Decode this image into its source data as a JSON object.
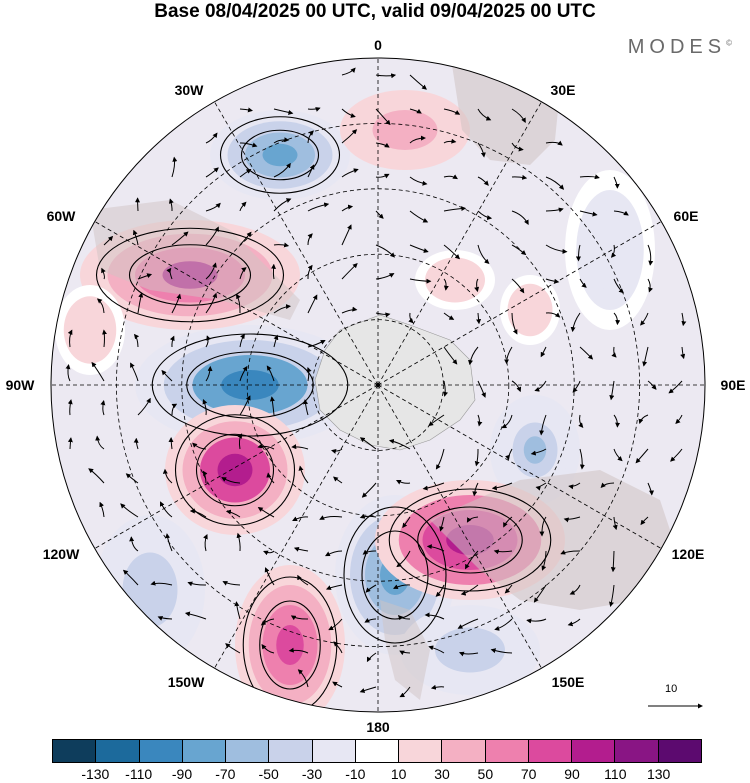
{
  "title": "Base 08/04/2025 00 UTC, valid 09/04/2025 00 UTC",
  "brand": "MODES",
  "brand_mark": "©",
  "longitude_labels": {
    "deg0": "0",
    "deg30e": "30E",
    "deg60e": "60E",
    "deg90e": "90E",
    "deg120e": "120E",
    "deg150e": "150E",
    "deg180": "180",
    "deg150w": "150W",
    "deg120w": "120W",
    "deg90w": "90W",
    "deg60w": "60W",
    "deg30w": "30W"
  },
  "reference_vector": "10",
  "legend": {
    "ticks": [
      "-130",
      "-110",
      "-90",
      "-70",
      "-50",
      "-30",
      "-10",
      "10",
      "30",
      "50",
      "70",
      "90",
      "110",
      "130"
    ],
    "colors": [
      "#0e3d5c",
      "#1c6a9c",
      "#3a87be",
      "#68a5d0",
      "#9fbedf",
      "#c9d2ea",
      "#e7e7f3",
      "#ffffff",
      "#f8d6da",
      "#f4b0c3",
      "#ee80ae",
      "#dc4a9e",
      "#b31d8e",
      "#891584",
      "#5c0a6f"
    ]
  },
  "colors": {
    "land": "#cfc3c3",
    "antarctica": "#e6e6e6"
  }
}
